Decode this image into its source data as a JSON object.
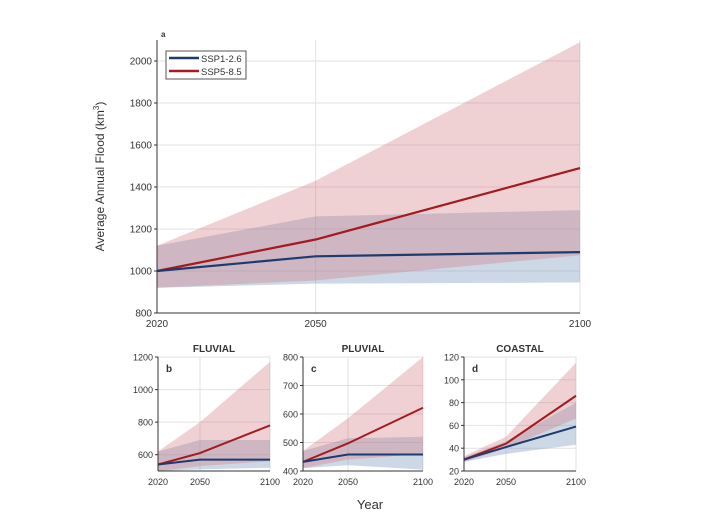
{
  "chart_data": [
    {
      "type": "line",
      "panel_label": "a",
      "title": "",
      "ylabel": "Average Annual Flood (km",
      "ylabel_sup": "3",
      "ylabel_close": ")",
      "x": [
        2020,
        2050,
        2100
      ],
      "xticks": [
        2020,
        2050,
        2100
      ],
      "ylim": [
        800,
        2100
      ],
      "yticks": [
        800,
        1000,
        1200,
        1400,
        1600,
        1800,
        2000
      ],
      "grid": true,
      "legend_placement": "top-left",
      "series": [
        {
          "name": "SSP1-2.6",
          "color": "#1f3a6e",
          "band_color": "#6f8fb8",
          "values": [
            1000,
            1070,
            1090
          ],
          "lower": [
            920,
            940,
            945
          ],
          "upper": [
            1120,
            1260,
            1290
          ]
        },
        {
          "name": "SSP5-8.5",
          "color": "#a31a1f",
          "band_color": "#d07880",
          "values": [
            1000,
            1150,
            1490
          ],
          "lower": [
            920,
            955,
            1075
          ],
          "upper": [
            1120,
            1430,
            2090
          ]
        }
      ]
    },
    {
      "type": "line",
      "panel_label": "b",
      "title": "FLUVIAL",
      "x": [
        2020,
        2050,
        2100
      ],
      "xticks": [
        2020,
        2050,
        2100
      ],
      "ylim": [
        500,
        1200
      ],
      "yticks": [
        600,
        800,
        1000,
        1200
      ],
      "grid": true,
      "series": [
        {
          "name": "SSP1-2.6",
          "color": "#1f3a6e",
          "band_color": "#6f8fb8",
          "values": [
            540,
            570,
            570
          ],
          "lower": [
            500,
            510,
            520
          ],
          "upper": [
            620,
            690,
            690
          ]
        },
        {
          "name": "SSP5-8.5",
          "color": "#a31a1f",
          "band_color": "#d07880",
          "values": [
            540,
            610,
            780
          ],
          "lower": [
            500,
            530,
            560
          ],
          "upper": [
            620,
            800,
            1170
          ]
        }
      ]
    },
    {
      "type": "line",
      "panel_label": "c",
      "title": "PLUVIAL",
      "x": [
        2020,
        2050,
        2100
      ],
      "xticks": [
        2020,
        2050,
        2100
      ],
      "ylim": [
        400,
        800
      ],
      "yticks": [
        400,
        500,
        600,
        700,
        800
      ],
      "grid": true,
      "series": [
        {
          "name": "SSP1-2.6",
          "color": "#1f3a6e",
          "band_color": "#6f8fb8",
          "values": [
            432,
            458,
            458
          ],
          "lower": [
            410,
            420,
            405
          ],
          "upper": [
            470,
            515,
            520
          ]
        },
        {
          "name": "SSP5-8.5",
          "color": "#a31a1f",
          "band_color": "#d07880",
          "values": [
            432,
            497,
            622
          ],
          "lower": [
            410,
            440,
            460
          ],
          "upper": [
            470,
            585,
            800
          ]
        }
      ]
    },
    {
      "type": "line",
      "panel_label": "d",
      "title": "COASTAL",
      "x": [
        2020,
        2050,
        2100
      ],
      "xticks": [
        2020,
        2050,
        2100
      ],
      "ylim": [
        20,
        120
      ],
      "yticks": [
        20,
        40,
        60,
        80,
        100,
        120
      ],
      "grid": true,
      "series": [
        {
          "name": "SSP1-2.6",
          "color": "#1f3a6e",
          "band_color": "#6f8fb8",
          "values": [
            30,
            41,
            59
          ],
          "lower": [
            28,
            35,
            43
          ],
          "upper": [
            32,
            46,
            80
          ]
        },
        {
          "name": "SSP5-8.5",
          "color": "#a31a1f",
          "band_color": "#d07880",
          "values": [
            30,
            44,
            86
          ],
          "lower": [
            28,
            40,
            66
          ],
          "upper": [
            33,
            50,
            115
          ]
        }
      ]
    }
  ],
  "shared_xlabel": "Year"
}
